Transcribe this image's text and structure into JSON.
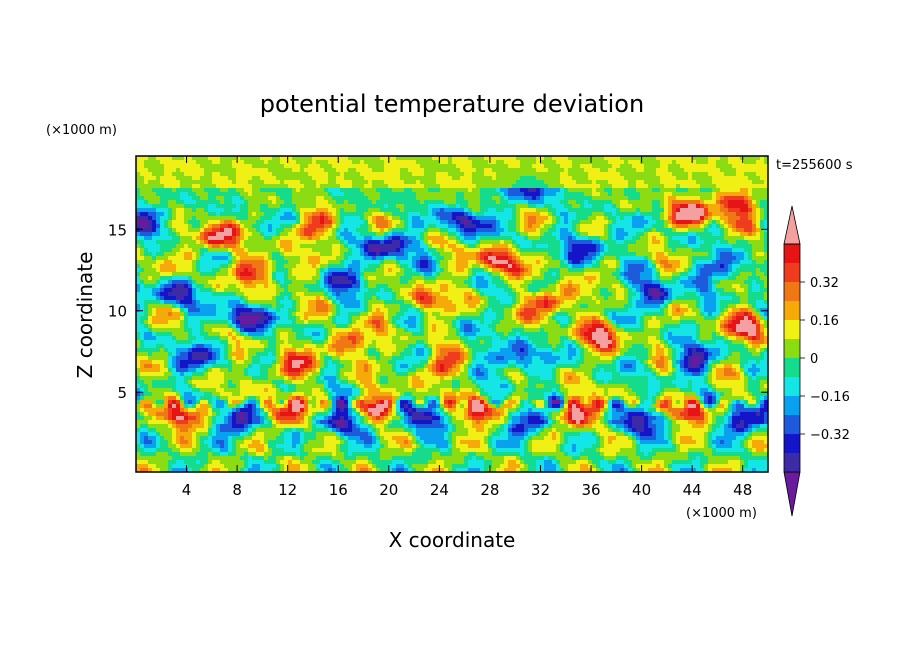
{
  "chart_data": {
    "type": "heatmap",
    "title": "potential temperature deviation",
    "xlabel": "X coordinate",
    "ylabel": "Z coordinate",
    "x_unit": "(×1000 m)",
    "y_unit": "(×1000 m)",
    "time_label": "t=255600 s",
    "xlim": [
      0,
      50
    ],
    "ylim": [
      0.1,
      19.5
    ],
    "x_ticks": [
      4,
      8,
      12,
      16,
      20,
      24,
      28,
      32,
      36,
      40,
      44,
      48
    ],
    "y_ticks": [
      5,
      10,
      15
    ],
    "colorbar": {
      "levels": [
        -0.48,
        -0.4,
        -0.32,
        -0.24,
        -0.16,
        -0.08,
        0,
        0.08,
        0.16,
        0.24,
        0.32,
        0.4,
        0.48
      ],
      "tick_labels": [
        "0.32",
        "0.16",
        "0",
        "−0.16",
        "−0.32"
      ],
      "tick_values": [
        0.32,
        0.16,
        0,
        -0.16,
        -0.32
      ],
      "colors": [
        "#6a1a9e",
        "#3d2aa6",
        "#1414c8",
        "#1e5adc",
        "#0aa0f0",
        "#14e6e6",
        "#14dc8c",
        "#8cdc14",
        "#f0f014",
        "#f5aa0a",
        "#f07814",
        "#f03c1e",
        "#e61414",
        "#f5a0a0"
      ],
      "extend": "both"
    },
    "field_description": "Gravity-wave field: alternating warm (pink/red) and cold (purple/blue) cells between 3 and 17 km, strong anomalies near 4 km",
    "features": [
      {
        "x": 4,
        "z": 3.6,
        "v": 0.5
      },
      {
        "x": 8,
        "z": 3.3,
        "v": -0.45
      },
      {
        "x": 12,
        "z": 3.8,
        "v": 0.4
      },
      {
        "x": 16.5,
        "z": 3.2,
        "v": -0.5
      },
      {
        "x": 19,
        "z": 4.0,
        "v": 0.5
      },
      {
        "x": 23,
        "z": 3.4,
        "v": -0.45
      },
      {
        "x": 27,
        "z": 3.8,
        "v": 0.5
      },
      {
        "x": 31,
        "z": 3.2,
        "v": -0.4
      },
      {
        "x": 35,
        "z": 3.7,
        "v": 0.5
      },
      {
        "x": 40,
        "z": 3.2,
        "v": -0.5
      },
      {
        "x": 44,
        "z": 3.8,
        "v": 0.45
      },
      {
        "x": 48,
        "z": 3.3,
        "v": -0.45
      },
      {
        "x": 6,
        "z": 14.5,
        "v": 0.5
      },
      {
        "x": 10,
        "z": 12.5,
        "v": 0.45
      },
      {
        "x": 3,
        "z": 11,
        "v": -0.4
      },
      {
        "x": 8.5,
        "z": 9.5,
        "v": -0.5
      },
      {
        "x": 14,
        "z": 15,
        "v": 0.35
      },
      {
        "x": 17,
        "z": 8,
        "v": 0.45
      },
      {
        "x": 20,
        "z": 14,
        "v": -0.5
      },
      {
        "x": 23,
        "z": 10.5,
        "v": 0.35
      },
      {
        "x": 26,
        "z": 15.5,
        "v": -0.45
      },
      {
        "x": 28.5,
        "z": 13,
        "v": 0.5
      },
      {
        "x": 31,
        "z": 17.5,
        "v": -0.45
      },
      {
        "x": 33,
        "z": 10.5,
        "v": 0.5
      },
      {
        "x": 30,
        "z": 7,
        "v": -0.45
      },
      {
        "x": 36,
        "z": 14,
        "v": -0.4
      },
      {
        "x": 37,
        "z": 8.5,
        "v": 0.45
      },
      {
        "x": 41,
        "z": 11,
        "v": -0.45
      },
      {
        "x": 44,
        "z": 16,
        "v": 0.5
      },
      {
        "x": 46.5,
        "z": 12.5,
        "v": -0.4
      },
      {
        "x": 48.5,
        "z": 9,
        "v": 0.45
      },
      {
        "x": 44,
        "z": 7,
        "v": -0.4
      },
      {
        "x": 12,
        "z": 6.5,
        "v": 0.4
      },
      {
        "x": 4,
        "z": 7,
        "v": -0.35
      },
      {
        "x": 24,
        "z": 6.5,
        "v": 0.35
      },
      {
        "x": 47.5,
        "z": 16.5,
        "v": 0.45
      },
      {
        "x": 1.5,
        "z": 15.5,
        "v": -0.4
      },
      {
        "x": 17,
        "z": 12,
        "v": -0.35
      }
    ]
  }
}
